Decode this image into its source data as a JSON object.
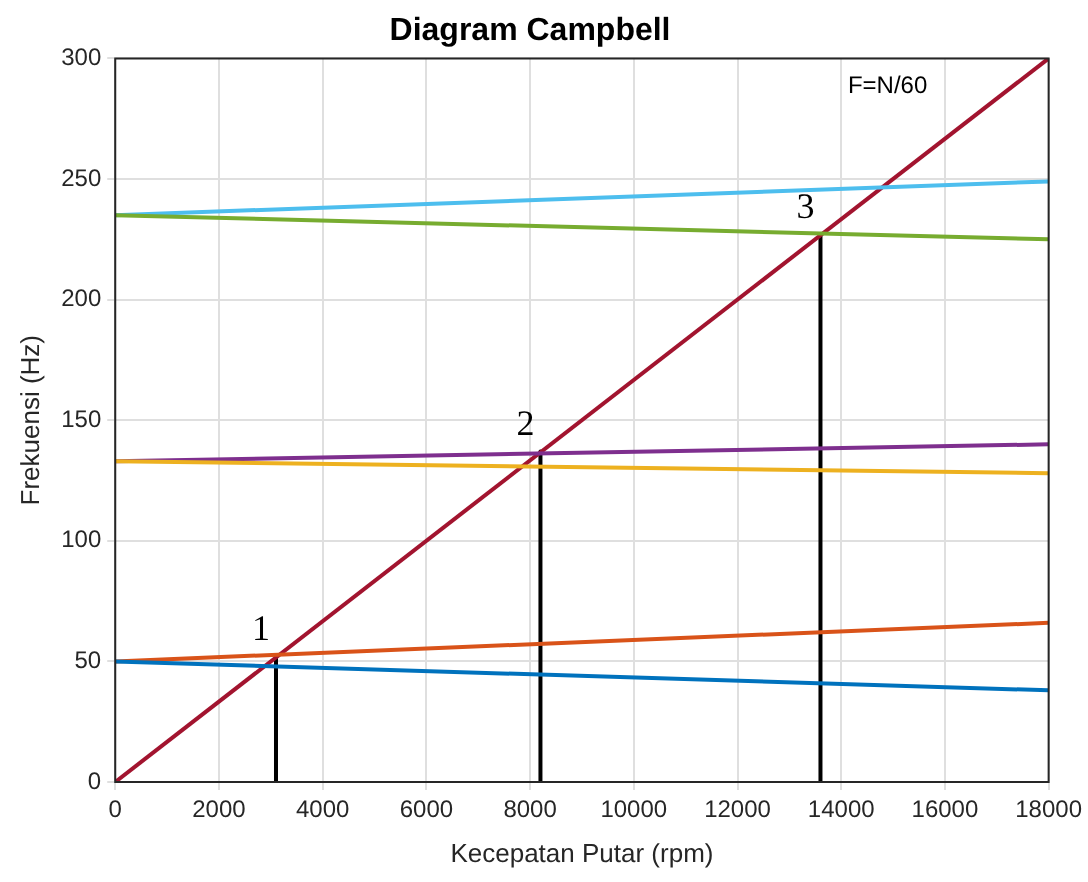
{
  "chart_data": {
    "type": "line",
    "title": "Diagram Campbell",
    "xlabel": "Kecepatan Putar (rpm)",
    "ylabel": "Frekuensi (Hz)",
    "xlim": [
      0,
      18000
    ],
    "xticks": [
      0,
      2000,
      4000,
      6000,
      8000,
      10000,
      12000,
      14000,
      16000,
      18000
    ],
    "ylim": [
      0,
      300
    ],
    "yticks": [
      0,
      50,
      100,
      150,
      200,
      250,
      300
    ],
    "grid": true,
    "legend": false,
    "marker": "none",
    "line_style": "solid",
    "series": [
      {
        "color": "#0072bd",
        "x": [
          0,
          18000
        ],
        "values": [
          50,
          38
        ]
      },
      {
        "color": "#d95319",
        "x": [
          0,
          18000
        ],
        "values": [
          50,
          66
        ]
      },
      {
        "color": "#edb120",
        "x": [
          0,
          18000
        ],
        "values": [
          133,
          128
        ]
      },
      {
        "color": "#7e2f8e",
        "x": [
          0,
          18000
        ],
        "values": [
          133,
          140
        ]
      },
      {
        "color": "#77ac30",
        "x": [
          0,
          18000
        ],
        "values": [
          235,
          225
        ]
      },
      {
        "color": "#4dbeee",
        "x": [
          0,
          18000
        ],
        "values": [
          235,
          249
        ]
      },
      {
        "color": "#a2142f",
        "x": [
          0,
          18000
        ],
        "values": [
          0,
          300
        ]
      },
      {
        "color": "#000000",
        "x": [
          3100,
          3100
        ],
        "values": [
          52,
          0
        ]
      },
      {
        "color": "#000000",
        "x": [
          8200,
          8200
        ],
        "values": [
          137,
          0
        ]
      },
      {
        "color": "#000000",
        "x": [
          13600,
          13600
        ],
        "values": [
          227,
          0
        ]
      }
    ],
    "annotations": [
      {
        "text": "1",
        "x": 3100,
        "y": 52
      },
      {
        "text": "2",
        "x": 8200,
        "y": 137
      },
      {
        "text": "3",
        "x": 13600,
        "y": 227
      },
      {
        "text": "F=N/60",
        "x": 16200,
        "y": 270
      }
    ]
  }
}
